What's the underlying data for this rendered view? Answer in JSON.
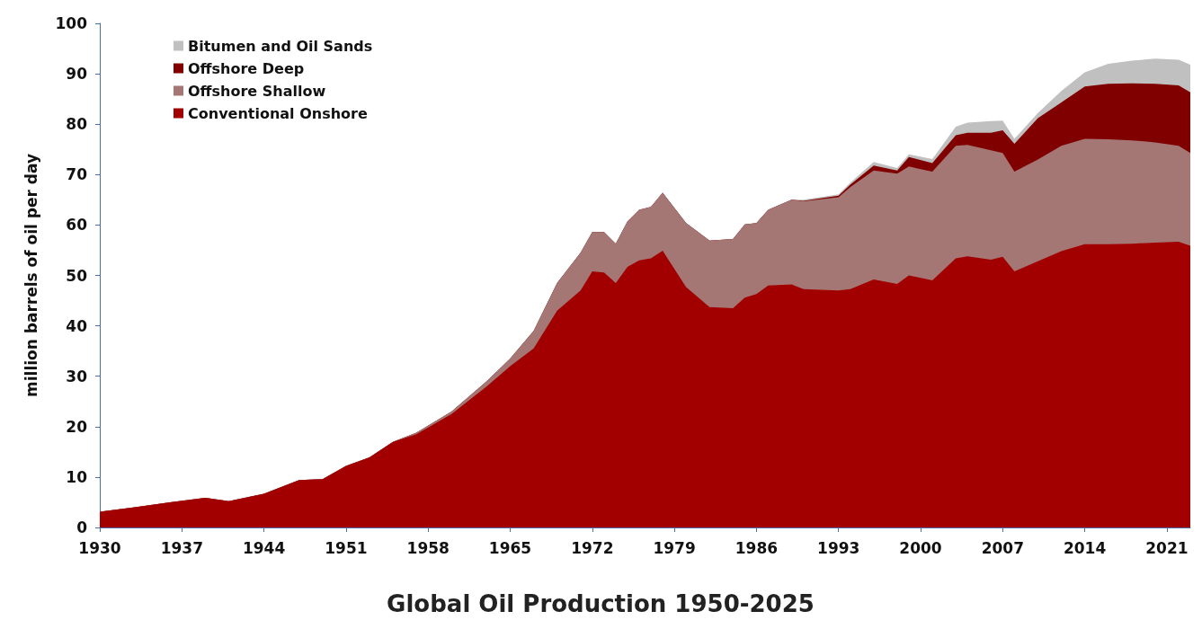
{
  "chart_data": {
    "type": "area",
    "title": "Global Oil Production 1950-2025",
    "ylabel": "million barrels of oil per day",
    "stacked": true,
    "x": [
      1930,
      1933,
      1936,
      1939,
      1941,
      1944,
      1947,
      1949,
      1951,
      1953,
      1955,
      1957,
      1960,
      1963,
      1965,
      1967,
      1969,
      1971,
      1972,
      1973,
      1974,
      1975,
      1976,
      1977,
      1978,
      1980,
      1982,
      1984,
      1985,
      1986,
      1987,
      1989,
      1990,
      1993,
      1994,
      1996,
      1998,
      1999,
      2001,
      2003,
      2004,
      2006,
      2007,
      2008,
      2010,
      2012,
      2014,
      2016,
      2018,
      2020,
      2022,
      2023
    ],
    "series": [
      {
        "name": "Conventional Onshore",
        "color": "#a20000",
        "values": [
          3.1,
          4.0,
          5.0,
          5.9,
          5.2,
          6.7,
          9.4,
          9.6,
          12.2,
          13.9,
          17,
          18.5,
          22.5,
          28,
          32,
          35.5,
          43,
          47,
          50.8,
          50.6,
          48.5,
          51.7,
          53,
          53.4,
          54.9,
          47.7,
          43.7,
          43.5,
          45.6,
          46.3,
          48,
          48.2,
          47.3,
          47,
          47.3,
          49.2,
          48.3,
          50,
          49,
          53.4,
          53.8,
          53.1,
          53.7,
          50.8,
          52.8,
          54.8,
          56.2,
          56.2,
          56.3,
          56.5,
          56.7,
          55.9
        ]
      },
      {
        "name": "Offshore Shallow",
        "color": "#a47674",
        "values": [
          0,
          0,
          0,
          0,
          0,
          0,
          0,
          0,
          0,
          0,
          0,
          0.3,
          0.5,
          1,
          1.5,
          3.5,
          5.5,
          7.5,
          7.8,
          8,
          7.8,
          9,
          10,
          10.2,
          11.5,
          12.7,
          13.2,
          13.7,
          14.5,
          14.1,
          15,
          16.8,
          17.4,
          18.5,
          20.2,
          21.6,
          21.9,
          21.6,
          21.6,
          22.3,
          22.1,
          21.7,
          20.6,
          19.8,
          20.2,
          20.9,
          20.9,
          20.8,
          20.5,
          19.9,
          19,
          18.4
        ]
      },
      {
        "name": "Offshore Deep",
        "color": "#800000",
        "values": [
          0,
          0,
          0,
          0,
          0,
          0,
          0,
          0,
          0,
          0,
          0,
          0,
          0,
          0,
          0,
          0,
          0,
          0,
          0,
          0,
          0,
          0,
          0,
          0,
          0,
          0,
          0,
          0,
          0,
          0,
          0,
          0,
          0.1,
          0.3,
          0.5,
          1,
          0.6,
          1.9,
          1.7,
          2.1,
          2.4,
          3.5,
          4.5,
          5.5,
          8.2,
          8.6,
          10.4,
          11,
          11.3,
          11.6,
          12,
          12
        ]
      },
      {
        "name": "Bitumen and Oil Sands",
        "color": "#c0c0c0",
        "values": [
          0,
          0,
          0,
          0,
          0,
          0,
          0,
          0,
          0,
          0,
          0,
          0,
          0,
          0,
          0,
          0,
          0,
          0,
          0,
          0,
          0,
          0,
          0,
          0,
          0,
          0,
          0,
          0,
          0,
          0,
          0,
          0,
          0.2,
          0.3,
          0.4,
          0.7,
          0.5,
          0.5,
          0.8,
          1.7,
          2,
          2.3,
          1.9,
          1,
          1,
          2.3,
          2.8,
          4,
          4.5,
          5,
          5.1,
          5.5
        ]
      }
    ],
    "xlim": [
      1930,
      2023
    ],
    "xticks": [
      1930,
      1937,
      1944,
      1951,
      1958,
      1965,
      1972,
      1979,
      1986,
      1993,
      2000,
      2007,
      2014,
      2021
    ],
    "ylim": [
      0,
      100
    ],
    "yticks": [
      0,
      10,
      20,
      30,
      40,
      50,
      60,
      70,
      80,
      90,
      100
    ],
    "grid": false,
    "legend": "top left"
  }
}
